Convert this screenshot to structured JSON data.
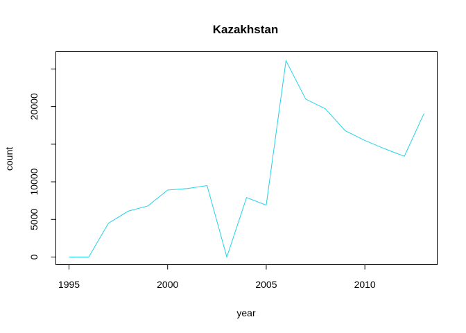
{
  "chart_data": {
    "type": "line",
    "title": "Kazakhstan",
    "xlabel": "year",
    "ylabel": "count",
    "xlim": [
      1995,
      2013
    ],
    "ylim": [
      0,
      26000
    ],
    "x_ticks": [
      1995,
      2000,
      2005,
      2010
    ],
    "y_ticks": [
      0,
      5000,
      10000,
      15000,
      20000,
      25000
    ],
    "y_tick_labels": [
      "0",
      "5000",
      "10000",
      "",
      "20000",
      ""
    ],
    "grid": false,
    "series": [
      {
        "color": "#22d3e6",
        "x": [
          1995,
          1996,
          1997,
          1998,
          1999,
          2000,
          2001,
          2002,
          2003,
          2004,
          2005,
          2006,
          2007,
          2008,
          2009,
          2010,
          2011,
          2012,
          2013
        ],
        "y": [
          0,
          0,
          4500,
          6100,
          6800,
          8900,
          9100,
          9500,
          0,
          7900,
          6900,
          26100,
          21000,
          19700,
          16800,
          15500,
          14400,
          13400,
          19100
        ]
      }
    ]
  }
}
